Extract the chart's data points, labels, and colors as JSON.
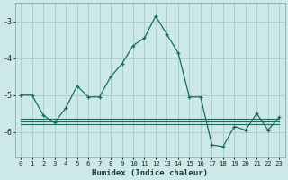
{
  "title": "",
  "xlabel": "Humidex (Indice chaleur)",
  "background_color": "#cce9e8",
  "grid_color": "#aacfce",
  "line_color": "#1a6b5e",
  "xlim": [
    -0.5,
    23.5
  ],
  "ylim": [
    -6.7,
    -2.5
  ],
  "yticks": [
    -6,
    -5,
    -4,
    -3
  ],
  "xticks": [
    0,
    1,
    2,
    3,
    4,
    5,
    6,
    7,
    8,
    9,
    10,
    11,
    12,
    13,
    14,
    15,
    16,
    17,
    18,
    19,
    20,
    21,
    22,
    23
  ],
  "series": [
    [
      0,
      -5.0
    ],
    [
      1,
      -5.0
    ],
    [
      2,
      -5.55
    ],
    [
      3,
      -5.75
    ],
    [
      4,
      -5.35
    ],
    [
      5,
      -4.75
    ],
    [
      6,
      -5.05
    ],
    [
      7,
      -5.05
    ],
    [
      8,
      -4.5
    ],
    [
      9,
      -4.15
    ],
    [
      10,
      -3.65
    ],
    [
      11,
      -3.45
    ],
    [
      12,
      -2.85
    ],
    [
      13,
      -3.35
    ],
    [
      14,
      -3.85
    ],
    [
      15,
      -5.05
    ],
    [
      16,
      -5.05
    ],
    [
      17,
      -6.35
    ],
    [
      18,
      -6.4
    ],
    [
      19,
      -5.85
    ],
    [
      20,
      -5.95
    ],
    [
      21,
      -5.5
    ],
    [
      22,
      -5.95
    ],
    [
      23,
      -5.6
    ]
  ],
  "flat_lines": [
    -5.65,
    -5.72,
    -5.78
  ]
}
